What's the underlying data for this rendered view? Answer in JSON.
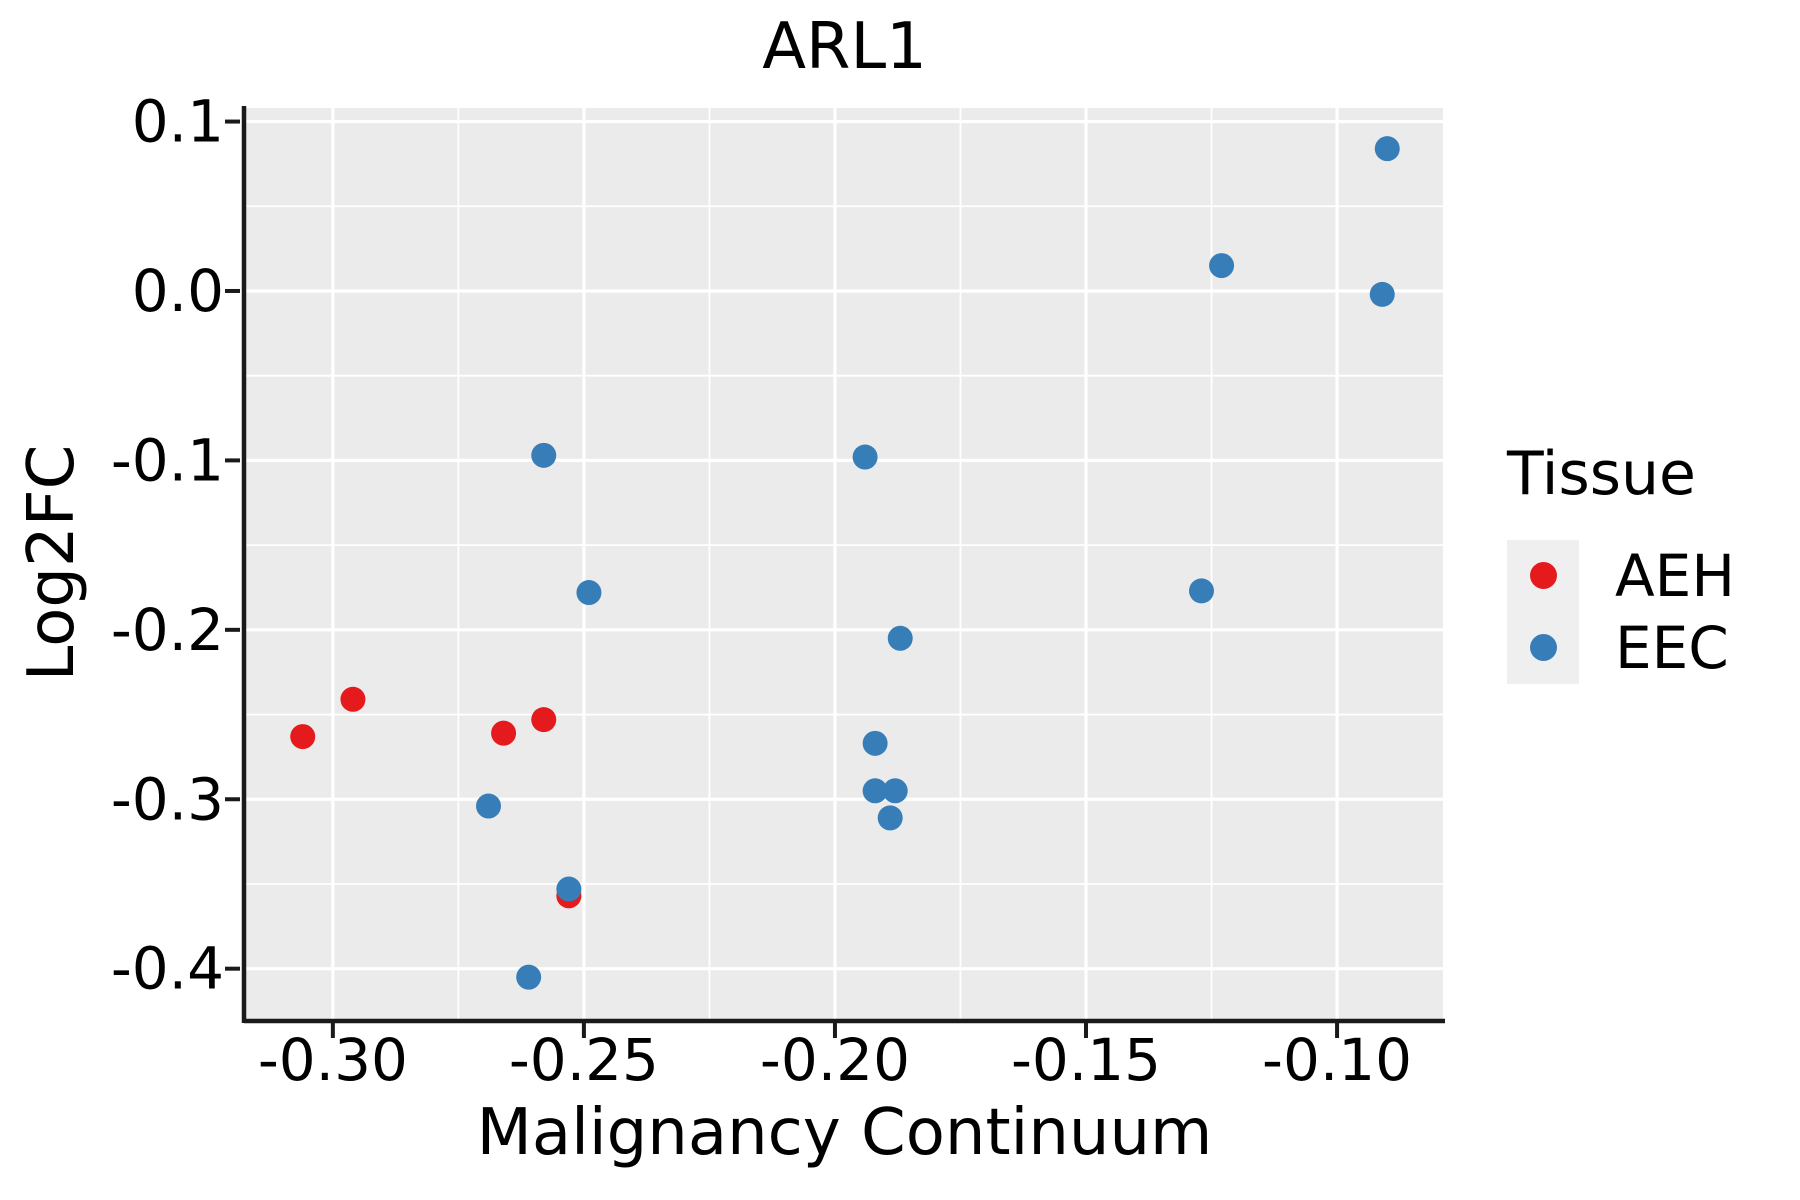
{
  "chart_data": {
    "type": "scatter",
    "title": "ARL1",
    "xlabel": "Malignancy Continuum",
    "ylabel": "Log2FC",
    "xlim": [
      -0.3173,
      -0.0789
    ],
    "ylim": [
      -0.4297,
      0.108
    ],
    "x_ticks": {
      "values": [
        -0.3,
        -0.25,
        -0.2,
        -0.15,
        -0.1
      ],
      "labels": [
        "-0.30",
        "-0.25",
        "-0.20",
        "-0.15",
        "-0.10"
      ]
    },
    "y_ticks": {
      "values": [
        0.1,
        0.0,
        -0.1,
        -0.2,
        -0.3,
        -0.4
      ],
      "labels": [
        "0.1",
        "0.0",
        "-0.1",
        "-0.2",
        "-0.3",
        "-0.4"
      ]
    },
    "x_minor_ticks": [
      -0.275,
      -0.225,
      -0.175,
      -0.125
    ],
    "y_minor_ticks": [
      0.05,
      -0.05,
      -0.15,
      -0.25,
      -0.35
    ],
    "grid": "major and minor gridlines on",
    "legend": {
      "title": "Tissue",
      "position": "right"
    },
    "colors": {
      "panel_bg": "#EBEBEB",
      "grid": "#FFFFFF",
      "axis": "#1a1a1a",
      "legend_key_bg": "#EFEFEF"
    },
    "series": [
      {
        "name": "AEH",
        "color": "#E41A1C",
        "points": [
          [
            -0.306,
            -0.263
          ],
          [
            -0.296,
            -0.241
          ],
          [
            -0.266,
            -0.261
          ],
          [
            -0.258,
            -0.253
          ],
          [
            -0.253,
            -0.357
          ]
        ]
      },
      {
        "name": "EEC",
        "color": "#377EB8",
        "points": [
          [
            -0.269,
            -0.304
          ],
          [
            -0.261,
            -0.405
          ],
          [
            -0.258,
            -0.097
          ],
          [
            -0.253,
            -0.353
          ],
          [
            -0.249,
            -0.178
          ],
          [
            -0.194,
            -0.098
          ],
          [
            -0.192,
            -0.267
          ],
          [
            -0.192,
            -0.295
          ],
          [
            -0.189,
            -0.311
          ],
          [
            -0.188,
            -0.295
          ],
          [
            -0.187,
            -0.205
          ],
          [
            -0.127,
            -0.177
          ],
          [
            -0.123,
            0.015
          ],
          [
            -0.091,
            -0.002
          ],
          [
            -0.09,
            0.084
          ]
        ]
      }
    ]
  }
}
